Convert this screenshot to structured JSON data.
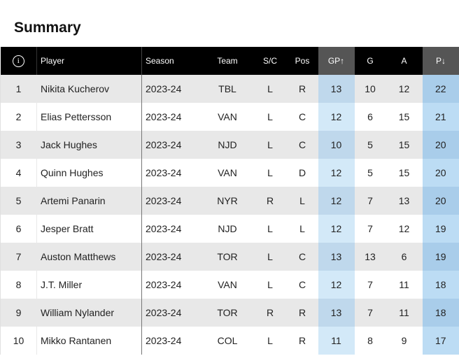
{
  "title": "Summary",
  "columns": {
    "info": "i",
    "player": "Player",
    "season": "Season",
    "team": "Team",
    "sc": "S/C",
    "pos": "Pos",
    "gp": "GP↑",
    "g": "G",
    "a": "A",
    "p": "P↓"
  },
  "rows": [
    {
      "rank": "1",
      "player": "Nikita Kucherov",
      "season": "2023-24",
      "team": "TBL",
      "sc": "L",
      "pos": "R",
      "gp": "13",
      "g": "10",
      "a": "12",
      "p": "22"
    },
    {
      "rank": "2",
      "player": "Elias Pettersson",
      "season": "2023-24",
      "team": "VAN",
      "sc": "L",
      "pos": "C",
      "gp": "12",
      "g": "6",
      "a": "15",
      "p": "21"
    },
    {
      "rank": "3",
      "player": "Jack Hughes",
      "season": "2023-24",
      "team": "NJD",
      "sc": "L",
      "pos": "C",
      "gp": "10",
      "g": "5",
      "a": "15",
      "p": "20"
    },
    {
      "rank": "4",
      "player": "Quinn Hughes",
      "season": "2023-24",
      "team": "VAN",
      "sc": "L",
      "pos": "D",
      "gp": "12",
      "g": "5",
      "a": "15",
      "p": "20"
    },
    {
      "rank": "5",
      "player": "Artemi Panarin",
      "season": "2023-24",
      "team": "NYR",
      "sc": "R",
      "pos": "L",
      "gp": "12",
      "g": "7",
      "a": "13",
      "p": "20"
    },
    {
      "rank": "6",
      "player": "Jesper Bratt",
      "season": "2023-24",
      "team": "NJD",
      "sc": "L",
      "pos": "L",
      "gp": "12",
      "g": "7",
      "a": "12",
      "p": "19"
    },
    {
      "rank": "7",
      "player": "Auston Matthews",
      "season": "2023-24",
      "team": "TOR",
      "sc": "L",
      "pos": "C",
      "gp": "13",
      "g": "13",
      "a": "6",
      "p": "19"
    },
    {
      "rank": "8",
      "player": "J.T. Miller",
      "season": "2023-24",
      "team": "VAN",
      "sc": "L",
      "pos": "C",
      "gp": "12",
      "g": "7",
      "a": "11",
      "p": "18"
    },
    {
      "rank": "9",
      "player": "William Nylander",
      "season": "2023-24",
      "team": "TOR",
      "sc": "R",
      "pos": "R",
      "gp": "13",
      "g": "7",
      "a": "11",
      "p": "18"
    },
    {
      "rank": "10",
      "player": "Mikko Rantanen",
      "season": "2023-24",
      "team": "COL",
      "sc": "L",
      "pos": "R",
      "gp": "11",
      "g": "8",
      "a": "9",
      "p": "17"
    }
  ]
}
